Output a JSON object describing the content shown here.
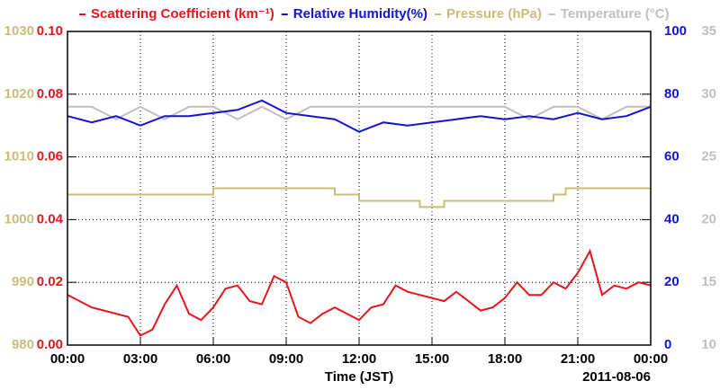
{
  "chart_data": {
    "type": "line",
    "x_label": "Time (JST)",
    "date_label": "2011-08-06",
    "xlim": [
      0,
      24
    ],
    "xticks": [
      {
        "value": 0,
        "label": "00:00"
      },
      {
        "value": 3,
        "label": "03:00"
      },
      {
        "value": 6,
        "label": "06:00"
      },
      {
        "value": 9,
        "label": "09:00"
      },
      {
        "value": 12,
        "label": "12:00"
      },
      {
        "value": 15,
        "label": "15:00"
      },
      {
        "value": 18,
        "label": "18:00"
      },
      {
        "value": 21,
        "label": "21:00"
      },
      {
        "value": 24,
        "label": "00:00"
      }
    ],
    "ylim": [
      0,
      0.1
    ],
    "yticks": [
      {
        "value": 0,
        "label": "0.00"
      },
      0.02,
      0.04,
      0.06,
      0.08,
      {
        "value": 0.1,
        "label": "0.10"
      }
    ],
    "y2lim": [
      0,
      100
    ],
    "y2ticks": [
      0,
      20,
      40,
      60,
      80,
      100
    ],
    "y3lim": [
      980,
      1030
    ],
    "y3ticks": [
      980,
      990,
      1000,
      1010,
      1020,
      1030
    ],
    "y4lim": [
      10,
      35
    ],
    "y4ticks": [
      10,
      15,
      20,
      25,
      30,
      35
    ],
    "grid": true,
    "series": [
      {
        "name": "Scattering Coefficient (km⁻¹)",
        "color": "#e8141e",
        "axis": "y",
        "x": [
          0,
          0.5,
          1,
          1.5,
          2,
          2.5,
          3,
          3.5,
          4,
          4.5,
          5,
          5.5,
          6,
          6.5,
          7,
          7.5,
          8,
          8.5,
          9,
          9.5,
          10,
          10.5,
          11,
          11.5,
          12,
          12.5,
          13,
          13.5,
          14,
          14.5,
          15,
          15.5,
          16,
          16.5,
          17,
          17.5,
          18,
          18.5,
          19,
          19.5,
          20,
          20.5,
          21,
          21.5,
          22,
          22.5,
          23,
          23.5,
          24
        ],
        "values": [
          0.016,
          0.014,
          0.012,
          0.011,
          0.01,
          0.009,
          0.003,
          0.005,
          0.013,
          0.019,
          0.01,
          0.008,
          0.012,
          0.018,
          0.019,
          0.014,
          0.013,
          0.022,
          0.02,
          0.009,
          0.007,
          0.01,
          0.012,
          0.01,
          0.008,
          0.012,
          0.013,
          0.019,
          0.017,
          0.016,
          0.015,
          0.014,
          0.017,
          0.014,
          0.011,
          0.012,
          0.015,
          0.02,
          0.016,
          0.016,
          0.02,
          0.018,
          0.023,
          0.03,
          0.016,
          0.019,
          0.018,
          0.02,
          0.019
        ]
      },
      {
        "name": "Relative Humidity(%)",
        "color": "#1414d2",
        "axis": "y2",
        "x": [
          0,
          1,
          2,
          3,
          4,
          5,
          6,
          7,
          8,
          9,
          10,
          11,
          12,
          13,
          14,
          15,
          16,
          17,
          18,
          19,
          20,
          21,
          22,
          23,
          24
        ],
        "values": [
          73,
          71,
          73,
          70,
          73,
          73,
          74,
          75,
          78,
          74,
          73,
          72,
          68,
          71,
          70,
          71,
          72,
          73,
          72,
          73,
          72,
          74,
          72,
          73,
          76
        ]
      },
      {
        "name": "Pressure (hPa)",
        "color": "#c8be78",
        "axis": "y3",
        "x": [
          0,
          6,
          6,
          11,
          11,
          12,
          12,
          14.5,
          14.5,
          15.5,
          15.5,
          20,
          20,
          20.5,
          20.5,
          24
        ],
        "values": [
          1004,
          1004,
          1005,
          1005,
          1004,
          1004,
          1003,
          1003,
          1002,
          1002,
          1003,
          1003,
          1004,
          1004,
          1005,
          1005
        ]
      },
      {
        "name": "Temperature (°C)",
        "color": "#c0c0c0",
        "axis": "y4",
        "x": [
          0,
          1,
          2,
          3,
          4,
          5,
          6,
          7,
          8,
          9,
          10,
          11,
          12,
          13,
          14,
          15,
          16,
          17,
          18,
          19,
          20,
          21,
          22,
          23,
          24
        ],
        "values": [
          29,
          29,
          28,
          29,
          28,
          29,
          29,
          28,
          29,
          28,
          29,
          29,
          29,
          29,
          29,
          29,
          29,
          29,
          29,
          28,
          29,
          29,
          28,
          29,
          29
        ]
      }
    ]
  }
}
